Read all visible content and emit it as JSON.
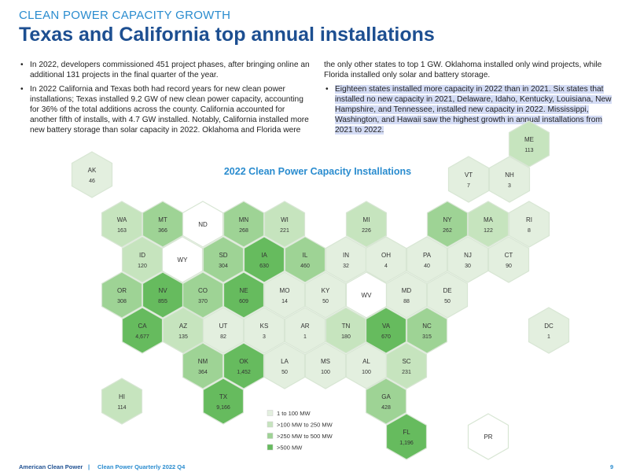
{
  "header": {
    "kicker": "CLEAN POWER CAPACITY GROWTH",
    "title": "Texas and California top annual installations"
  },
  "left_column": [
    "In 2022, developers commissioned 451 project phases, after bringing online an additional 131 projects in the final quarter of the year.",
    "In 2022 California and Texas both had record years for new clean power installations; Texas installed 9.2 GW of new clean power capacity, accounting for 36% of the total additions across the county. California accounted for another fifth of installs, with 4.7 GW installed. Notably, California installed more new battery storage than solar capacity in 2022. Oklahoma and Florida were"
  ],
  "right_column": [
    "the only other states to top 1 GW. Oklahoma installed only wind projects, while Florida installed only solar and battery storage.",
    "Eighteen states installed more capacity in 2022 than in 2021. Six states that installed no new capacity in 2021, Delaware, Idaho, Kentucky, Louisiana, New Hampshire, and Tennessee, installed new capacity in 2022. Mississippi, Washington, and Hawaii saw the highest growth in annual installations from 2021 to 2022."
  ],
  "map": {
    "title": "2022 Clean Power Capacity Installations",
    "legend": [
      {
        "label": "1 to 100 MW",
        "color": "#e3efdf"
      },
      {
        "label": ">100 MW to 250 MW",
        "color": "#c6e4be"
      },
      {
        "label": ">250 MW to 500 MW",
        "color": "#9ed395"
      },
      {
        "label": ">500 MW",
        "color": "#66bb5e"
      }
    ],
    "states": [
      {
        "code": "ME",
        "value": "113",
        "color": "#c6e4be"
      },
      {
        "code": "AK",
        "value": "46",
        "color": "#e3efdf"
      },
      {
        "code": "VT",
        "value": "7",
        "color": "#e3efdf"
      },
      {
        "code": "NH",
        "value": "3",
        "color": "#e3efdf"
      },
      {
        "code": "WA",
        "value": "163",
        "color": "#c6e4be"
      },
      {
        "code": "MT",
        "value": "366",
        "color": "#9ed395"
      },
      {
        "code": "ND",
        "value": null,
        "color": "#ffffff"
      },
      {
        "code": "MN",
        "value": "268",
        "color": "#9ed395"
      },
      {
        "code": "WI",
        "value": "221",
        "color": "#c6e4be"
      },
      {
        "code": "MI",
        "value": "226",
        "color": "#c6e4be"
      },
      {
        "code": "NY",
        "value": "262",
        "color": "#9ed395"
      },
      {
        "code": "MA",
        "value": "122",
        "color": "#c6e4be"
      },
      {
        "code": "RI",
        "value": "8",
        "color": "#e3efdf"
      },
      {
        "code": "ID",
        "value": "120",
        "color": "#c6e4be"
      },
      {
        "code": "WY",
        "value": null,
        "color": "#ffffff"
      },
      {
        "code": "SD",
        "value": "304",
        "color": "#9ed395"
      },
      {
        "code": "IA",
        "value": "630",
        "color": "#66bb5e"
      },
      {
        "code": "IL",
        "value": "460",
        "color": "#9ed395"
      },
      {
        "code": "IN",
        "value": "32",
        "color": "#e3efdf"
      },
      {
        "code": "OH",
        "value": "4",
        "color": "#e3efdf"
      },
      {
        "code": "PA",
        "value": "40",
        "color": "#e3efdf"
      },
      {
        "code": "NJ",
        "value": "30",
        "color": "#e3efdf"
      },
      {
        "code": "CT",
        "value": "90",
        "color": "#e3efdf"
      },
      {
        "code": "OR",
        "value": "308",
        "color": "#9ed395"
      },
      {
        "code": "NV",
        "value": "855",
        "color": "#66bb5e"
      },
      {
        "code": "CO",
        "value": "370",
        "color": "#9ed395"
      },
      {
        "code": "NE",
        "value": "609",
        "color": "#66bb5e"
      },
      {
        "code": "MO",
        "value": "14",
        "color": "#e3efdf"
      },
      {
        "code": "KY",
        "value": "50",
        "color": "#e3efdf"
      },
      {
        "code": "WV",
        "value": null,
        "color": "#ffffff"
      },
      {
        "code": "MD",
        "value": "88",
        "color": "#e3efdf"
      },
      {
        "code": "DE",
        "value": "50",
        "color": "#e3efdf"
      },
      {
        "code": "CA",
        "value": "4,677",
        "color": "#66bb5e"
      },
      {
        "code": "AZ",
        "value": "135",
        "color": "#c6e4be"
      },
      {
        "code": "UT",
        "value": "82",
        "color": "#e3efdf"
      },
      {
        "code": "KS",
        "value": "3",
        "color": "#e3efdf"
      },
      {
        "code": "AR",
        "value": "1",
        "color": "#e3efdf"
      },
      {
        "code": "TN",
        "value": "180",
        "color": "#c6e4be"
      },
      {
        "code": "VA",
        "value": "670",
        "color": "#66bb5e"
      },
      {
        "code": "NC",
        "value": "315",
        "color": "#9ed395"
      },
      {
        "code": "DC",
        "value": "1",
        "color": "#e3efdf"
      },
      {
        "code": "NM",
        "value": "364",
        "color": "#9ed395"
      },
      {
        "code": "OK",
        "value": "1,452",
        "color": "#66bb5e"
      },
      {
        "code": "LA",
        "value": "50",
        "color": "#e3efdf"
      },
      {
        "code": "MS",
        "value": "100",
        "color": "#e3efdf"
      },
      {
        "code": "AL",
        "value": "100",
        "color": "#e3efdf"
      },
      {
        "code": "SC",
        "value": "231",
        "color": "#c6e4be"
      },
      {
        "code": "HI",
        "value": "114",
        "color": "#c6e4be"
      },
      {
        "code": "TX",
        "value": "9,166",
        "color": "#66bb5e"
      },
      {
        "code": "GA",
        "value": "428",
        "color": "#9ed395"
      },
      {
        "code": "FL",
        "value": "1,196",
        "color": "#66bb5e"
      },
      {
        "code": "PR",
        "value": null,
        "color": "#ffffff"
      }
    ]
  },
  "footer": {
    "org": "American Clean Power",
    "publication": "Clean Power Quarterly 2022 Q4",
    "page": "9"
  }
}
